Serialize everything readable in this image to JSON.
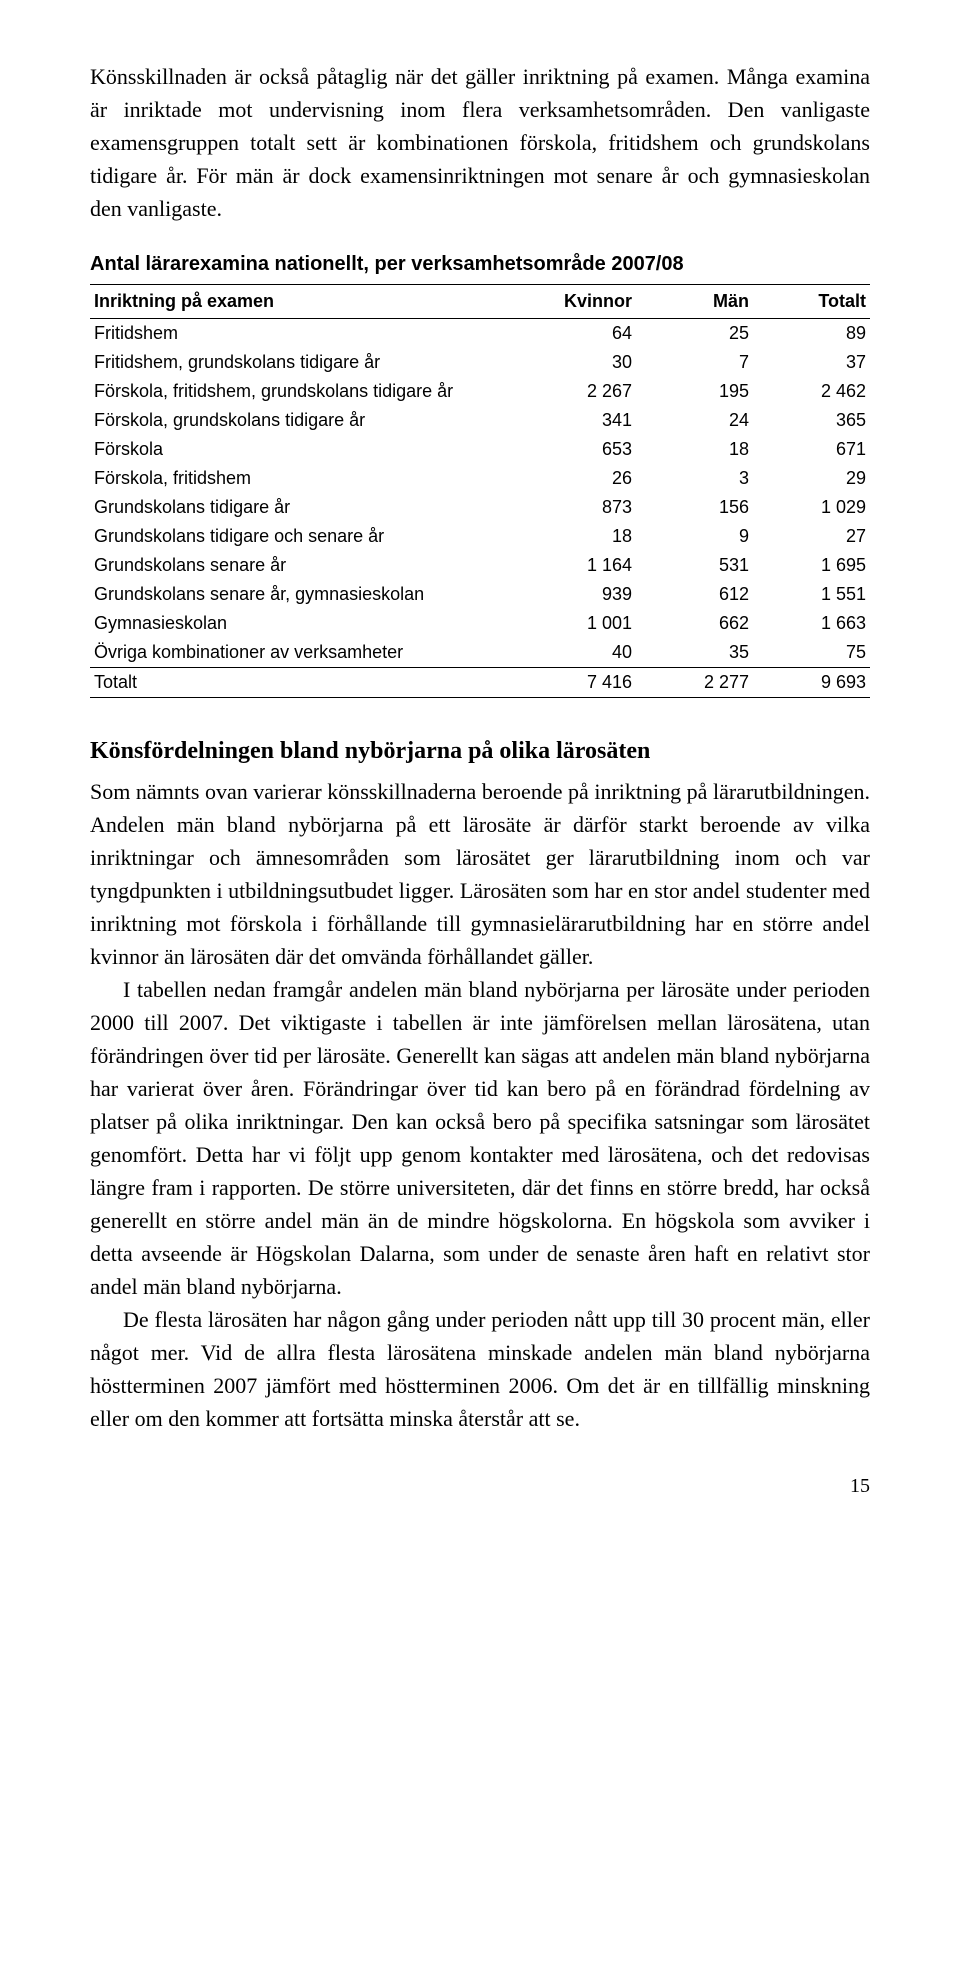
{
  "intro": {
    "p1": "Könsskillnaden är också påtaglig när det gäller inriktning på examen. Många examina är inriktade mot undervisning inom flera verksamhetsområden. Den vanligaste examensgruppen totalt sett är kombinationen förskola, fritidshem och grundskolans tidigare år. För män är dock examensinriktningen mot senare år och gymnasieskolan den vanligaste."
  },
  "table": {
    "title": "Antal lärarexamina nationellt, per verksamhetsområde 2007/08",
    "headers": [
      "Inriktning på examen",
      "Kvinnor",
      "Män",
      "Totalt"
    ],
    "rows": [
      [
        "Fritidshem",
        "64",
        "25",
        "89"
      ],
      [
        "Fritidshem, grundskolans tidigare år",
        "30",
        "7",
        "37"
      ],
      [
        "Förskola, fritidshem, grundskolans tidigare år",
        "2 267",
        "195",
        "2 462"
      ],
      [
        "Förskola, grundskolans tidigare år",
        "341",
        "24",
        "365"
      ],
      [
        "Förskola",
        "653",
        "18",
        "671"
      ],
      [
        "Förskola, fritidshem",
        "26",
        "3",
        "29"
      ],
      [
        "Grundskolans tidigare år",
        "873",
        "156",
        "1 029"
      ],
      [
        "Grundskolans tidigare och senare år",
        "18",
        "9",
        "27"
      ],
      [
        "Grundskolans senare år",
        "1 164",
        "531",
        "1 695"
      ],
      [
        "Grundskolans senare år, gymnasieskolan",
        "939",
        "612",
        "1 551"
      ],
      [
        "Gymnasieskolan",
        "1 001",
        "662",
        "1 663"
      ],
      [
        "Övriga kombinationer av verksamheter",
        "40",
        "35",
        "75"
      ]
    ],
    "total": [
      "Totalt",
      "7 416",
      "2 277",
      "9 693"
    ]
  },
  "section": {
    "heading": "Könsfördelningen bland nybörjarna på olika lärosäten",
    "p1": "Som nämnts ovan varierar könsskillnaderna beroende på inriktning på lärarutbildningen. Andelen män bland nybörjarna på ett lärosäte är därför starkt beroende av vilka inriktningar och ämnesområden som lärosätet ger lärarutbildning inom och var tyngdpunkten i utbildningsutbudet ligger. Lärosäten som har en stor andel studenter med inriktning mot förskola i förhållande till gymnasielärarutbildning har en större andel kvinnor än lärosäten där det omvända förhållandet gäller.",
    "p2": "I tabellen nedan framgår andelen män bland nybörjarna per lärosäte under perioden 2000 till 2007. Det viktigaste i tabellen är inte jämförelsen mellan lärosätena, utan förändringen över tid per lärosäte. Generellt kan sägas att andelen män bland nybörjarna har varierat över åren. Förändringar över tid kan bero på en förändrad fördelning av platser på olika inriktningar. Den kan också bero på specifika satsningar som lärosätet genomfört. Detta har vi följt upp genom kontakter med lärosätena, och det redovisas längre fram i rapporten. De större universiteten, där det finns en större bredd, har också generellt en större andel män än de mindre högskolorna. En högskola som avviker i detta avseende är Högskolan Dalarna, som under de senaste åren haft en relativt stor andel män bland nybörjarna.",
    "p3": "De flesta lärosäten har någon gång under perioden nått upp till 30 procent män, eller något mer. Vid de allra flesta lärosätena minskade andelen män bland nybörjarna höstterminen 2007 jämfört med höstterminen 2006. Om det är en tillfällig minskning eller om den kommer att fortsätta minska återstår att se."
  },
  "pagenum": "15"
}
